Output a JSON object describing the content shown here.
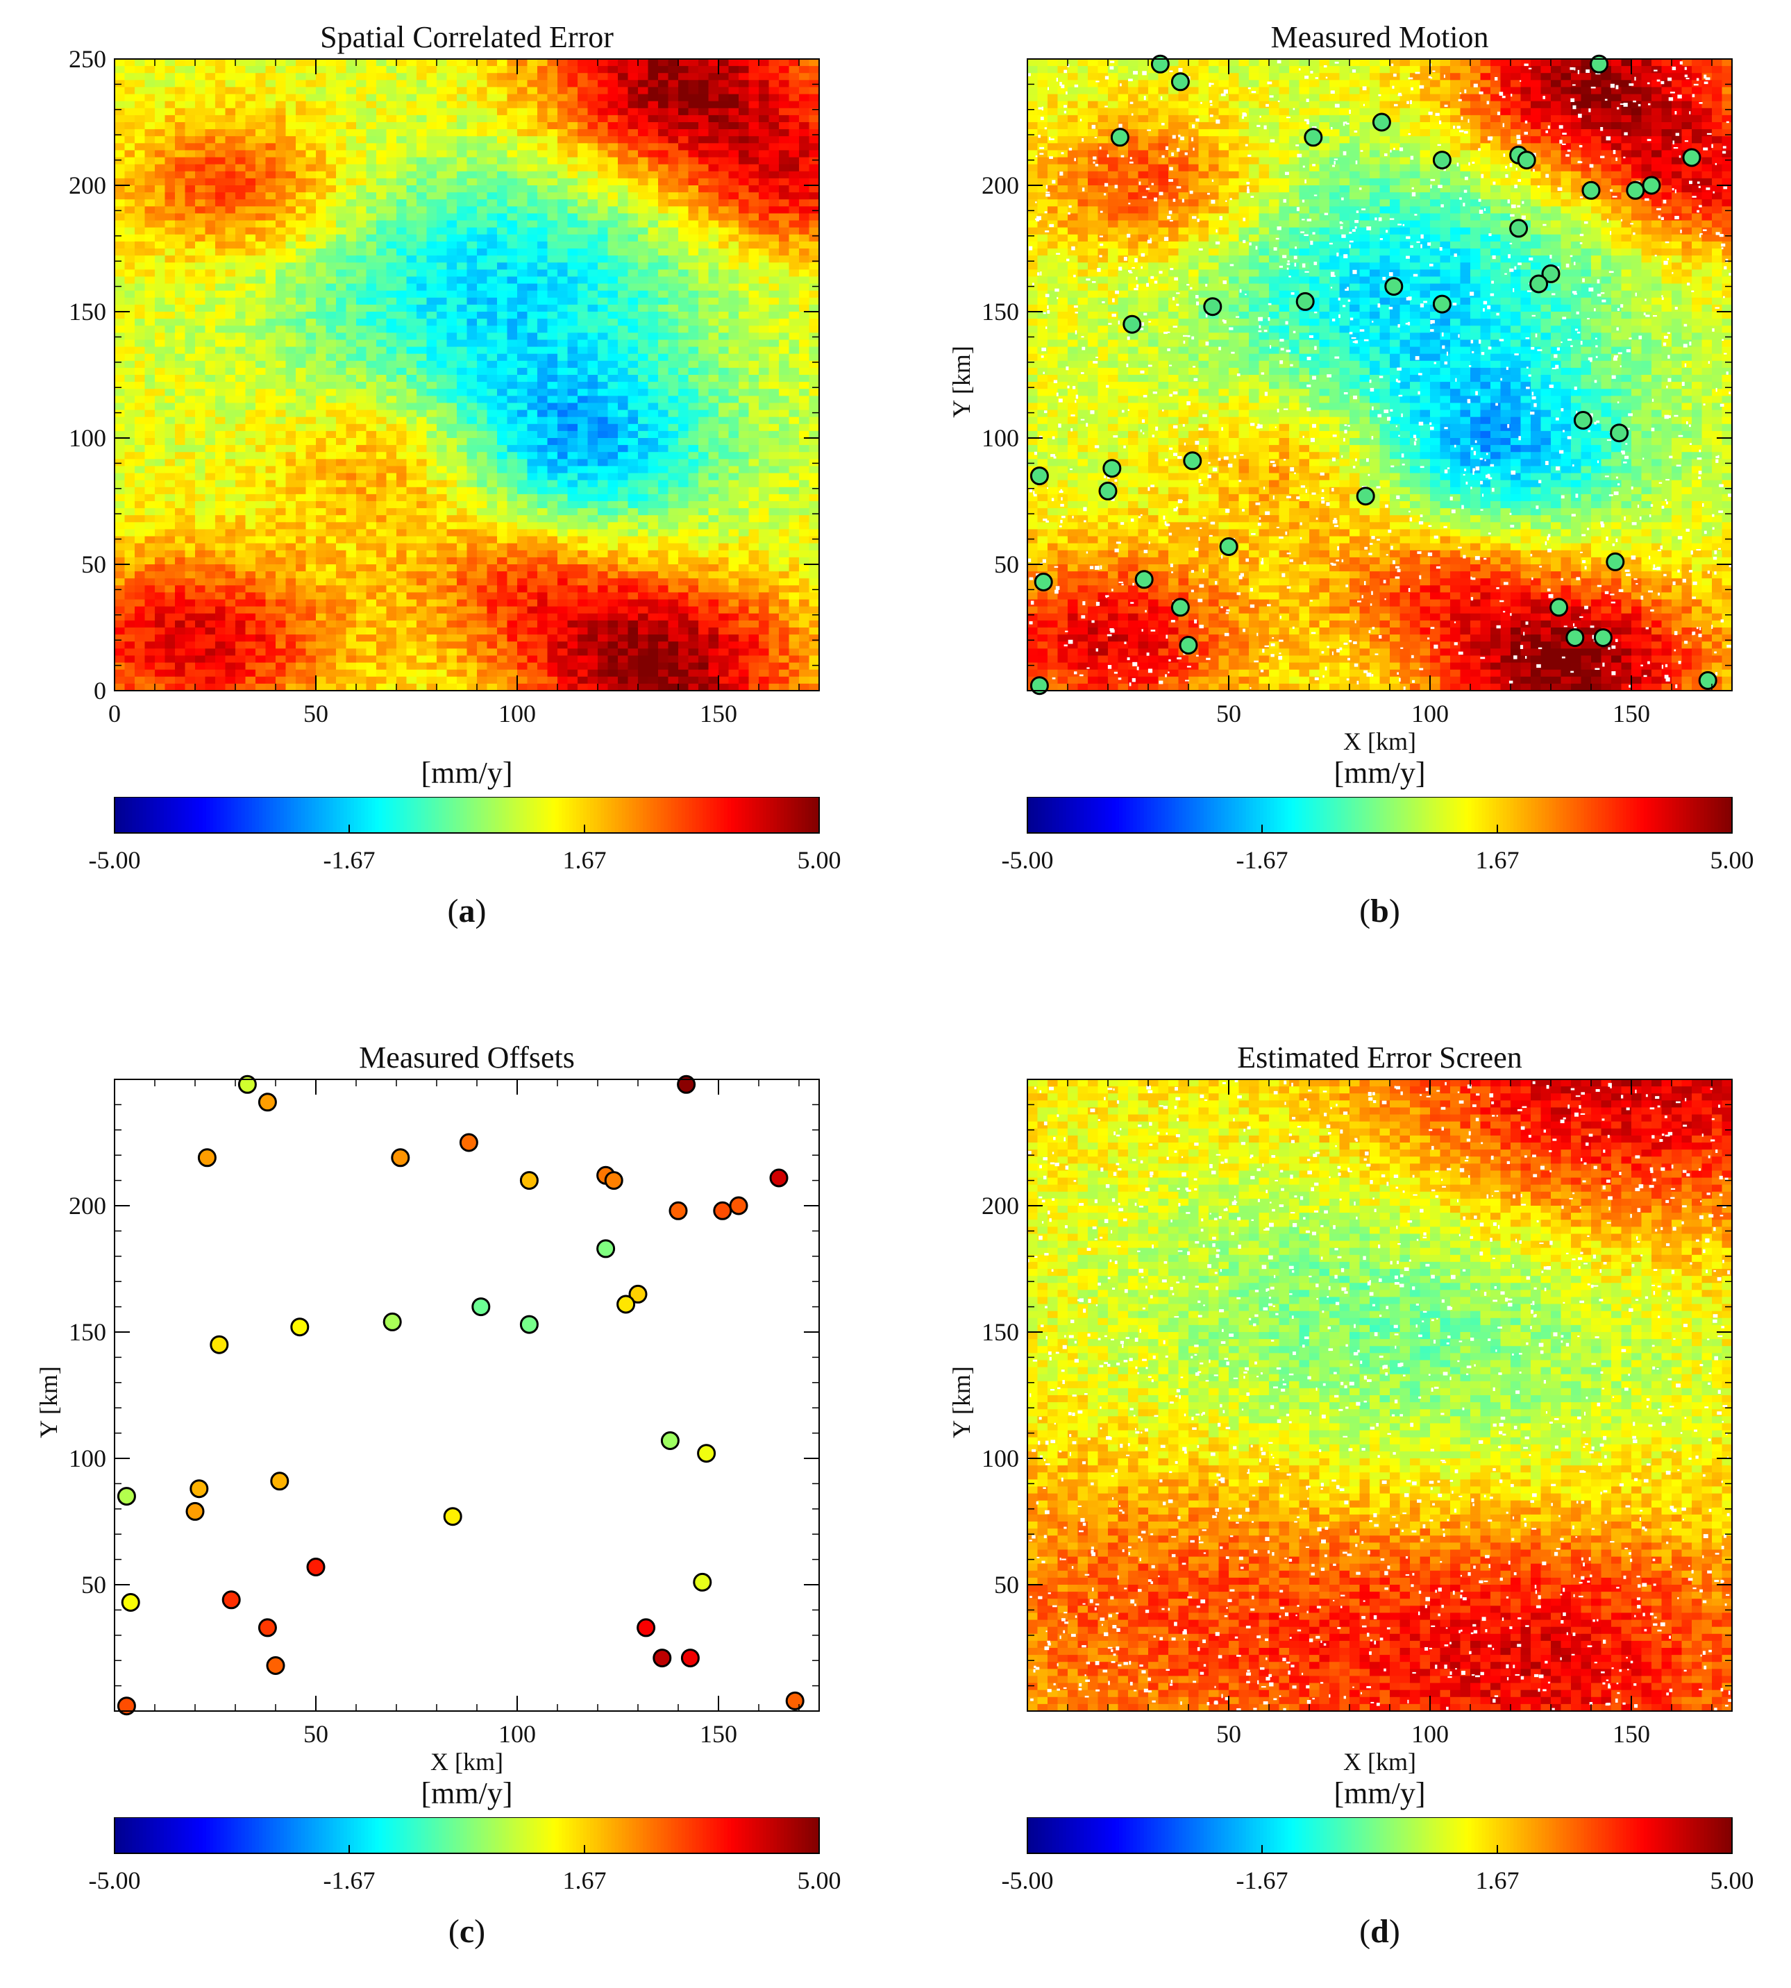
{
  "colormap": [
    "#00008f",
    "#0000ff",
    "#0080ff",
    "#00ffff",
    "#80ff80",
    "#ffff00",
    "#ff8000",
    "#ff0000",
    "#800000"
  ],
  "chart_data": [
    {
      "id": "a",
      "type": "heatmap",
      "title": "Spatial Correlated Error",
      "xlabel": "",
      "ylabel": "",
      "xlim": [
        0,
        175
      ],
      "ylim": [
        0,
        250
      ],
      "xticks": [
        "0",
        "50",
        "100",
        "150"
      ],
      "xtick_values": [
        0,
        50,
        100,
        150
      ],
      "yticks": [
        "0",
        "50",
        "100",
        "150",
        "200",
        "250"
      ],
      "ytick_values": [
        0,
        50,
        100,
        150,
        200,
        250
      ],
      "colorbar": {
        "unit": "[mm/y]",
        "min": -5.0,
        "max": 5.0,
        "ticks": [
          "-5.00",
          "-1.67",
          "1.67",
          "5.00"
        ],
        "tick_values": [
          -5.0,
          -1.67,
          1.67,
          5.0
        ]
      },
      "panel_label": {
        "open": "(",
        "letter": "a",
        "close": ")"
      },
      "features": [
        {
          "x": 140,
          "y": 240,
          "value": 4.8,
          "spread": 25
        },
        {
          "x": 135,
          "y": 10,
          "value": 4.9,
          "spread": 25
        },
        {
          "x": 20,
          "y": 20,
          "value": 4.0,
          "spread": 25
        },
        {
          "x": 30,
          "y": 200,
          "value": 3.2,
          "spread": 20
        },
        {
          "x": 95,
          "y": 160,
          "value": -1.5,
          "spread": 35
        },
        {
          "x": 115,
          "y": 95,
          "value": -1.8,
          "spread": 25
        },
        {
          "x": 170,
          "y": 200,
          "value": 3.5,
          "spread": 20
        },
        {
          "x": 70,
          "y": 90,
          "value": 2.5,
          "spread": 20
        },
        {
          "x": 100,
          "y": 45,
          "value": 2.8,
          "spread": 20
        }
      ],
      "baseline": 1.0
    },
    {
      "id": "b",
      "type": "scatter",
      "title": "Measured Motion",
      "xlabel": "X [km]",
      "ylabel": "Y [km]",
      "xlim": [
        0,
        175
      ],
      "ylim": [
        0,
        250
      ],
      "xticks": [
        "50",
        "100",
        "150"
      ],
      "xtick_values": [
        50,
        100,
        150
      ],
      "yticks": [
        "50",
        "100",
        "150",
        "200"
      ],
      "ytick_values": [
        50,
        100,
        150,
        200
      ],
      "background": "noisy-heatmap",
      "colorbar": {
        "unit": "[mm/y]",
        "min": -5.0,
        "max": 5.0,
        "ticks": [
          "-5.00",
          "-1.67",
          "1.67",
          "5.00"
        ],
        "tick_values": [
          -5.0,
          -1.67,
          1.67,
          5.0
        ]
      },
      "panel_label": {
        "open": "(",
        "letter": "b",
        "close": ")"
      },
      "point_color": "#50e080"
    },
    {
      "id": "c",
      "type": "scatter",
      "title": "Measured Offsets",
      "xlabel": "X [km]",
      "ylabel": "Y [km]",
      "xlim": [
        0,
        175
      ],
      "ylim": [
        0,
        250
      ],
      "xticks": [
        "50",
        "100",
        "150"
      ],
      "xtick_values": [
        50,
        100,
        150
      ],
      "yticks": [
        "50",
        "100",
        "150",
        "200"
      ],
      "ytick_values": [
        50,
        100,
        150,
        200
      ],
      "colorbar": {
        "unit": "[mm/y]",
        "min": -5.0,
        "max": 5.0,
        "ticks": [
          "-5.00",
          "-1.67",
          "1.67",
          "5.00"
        ],
        "tick_values": [
          -5.0,
          -1.67,
          1.67,
          5.0
        ]
      },
      "panel_label": {
        "open": "(",
        "letter": "c",
        "close": ")"
      },
      "points": [
        {
          "x": 33,
          "y": 248,
          "value": 0.8
        },
        {
          "x": 38,
          "y": 241,
          "value": 2.2
        },
        {
          "x": 142,
          "y": 248,
          "value": 4.9
        },
        {
          "x": 23,
          "y": 219,
          "value": 2.2
        },
        {
          "x": 71,
          "y": 219,
          "value": 2.3
        },
        {
          "x": 88,
          "y": 225,
          "value": 2.7
        },
        {
          "x": 103,
          "y": 210,
          "value": 1.9
        },
        {
          "x": 122,
          "y": 212,
          "value": 2.6
        },
        {
          "x": 124,
          "y": 210,
          "value": 2.5
        },
        {
          "x": 165,
          "y": 211,
          "value": 4.2
        },
        {
          "x": 140,
          "y": 198,
          "value": 2.8
        },
        {
          "x": 151,
          "y": 198,
          "value": 3.0
        },
        {
          "x": 155,
          "y": 200,
          "value": 2.9
        },
        {
          "x": 122,
          "y": 183,
          "value": 0.0
        },
        {
          "x": 130,
          "y": 165,
          "value": 1.7
        },
        {
          "x": 127,
          "y": 161,
          "value": 1.5
        },
        {
          "x": 69,
          "y": 154,
          "value": 0.4
        },
        {
          "x": 91,
          "y": 160,
          "value": -0.2
        },
        {
          "x": 103,
          "y": 153,
          "value": -0.1
        },
        {
          "x": 46,
          "y": 152,
          "value": 1.3
        },
        {
          "x": 26,
          "y": 145,
          "value": 1.5
        },
        {
          "x": 138,
          "y": 107,
          "value": 0.3
        },
        {
          "x": 147,
          "y": 102,
          "value": 1.1
        },
        {
          "x": 3,
          "y": 85,
          "value": 0.5
        },
        {
          "x": 21,
          "y": 88,
          "value": 2.0
        },
        {
          "x": 20,
          "y": 79,
          "value": 2.2
        },
        {
          "x": 41,
          "y": 91,
          "value": 2.0
        },
        {
          "x": 84,
          "y": 77,
          "value": 1.4
        },
        {
          "x": 50,
          "y": 57,
          "value": 3.5
        },
        {
          "x": 146,
          "y": 51,
          "value": 1.0
        },
        {
          "x": 4,
          "y": 43,
          "value": 1.2
        },
        {
          "x": 29,
          "y": 44,
          "value": 3.3
        },
        {
          "x": 38,
          "y": 33,
          "value": 3.2
        },
        {
          "x": 40,
          "y": 18,
          "value": 2.8
        },
        {
          "x": 132,
          "y": 33,
          "value": 3.8
        },
        {
          "x": 136,
          "y": 21,
          "value": 4.4
        },
        {
          "x": 143,
          "y": 21,
          "value": 3.9
        },
        {
          "x": 3,
          "y": 2,
          "value": 3.0
        },
        {
          "x": 169,
          "y": 4,
          "value": 2.8
        }
      ]
    },
    {
      "id": "d",
      "type": "heatmap",
      "title": "Estimated Error Screen",
      "xlabel": "X [km]",
      "ylabel": "Y [km]",
      "xlim": [
        0,
        175
      ],
      "ylim": [
        0,
        250
      ],
      "xticks": [
        "50",
        "100",
        "150"
      ],
      "xtick_values": [
        50,
        100,
        150
      ],
      "yticks": [
        "50",
        "100",
        "150",
        "200"
      ],
      "ytick_values": [
        50,
        100,
        150,
        200
      ],
      "background": "noisy-heatmap",
      "colorbar": {
        "unit": "[mm/y]",
        "min": -5.0,
        "max": 5.0,
        "ticks": [
          "-5.00",
          "-1.67",
          "1.67",
          "5.00"
        ],
        "tick_values": [
          -5.0,
          -1.67,
          1.67,
          5.0
        ]
      },
      "panel_label": {
        "open": "(",
        "letter": "d",
        "close": ")"
      },
      "features": [
        {
          "x": 145,
          "y": 245,
          "value": 4.5,
          "spread": 45
        },
        {
          "x": 130,
          "y": 20,
          "value": 3.8,
          "spread": 40
        },
        {
          "x": 40,
          "y": 40,
          "value": 3.0,
          "spread": 45
        },
        {
          "x": 95,
          "y": 160,
          "value": -0.3,
          "spread": 55
        }
      ],
      "baseline": 1.5
    }
  ]
}
